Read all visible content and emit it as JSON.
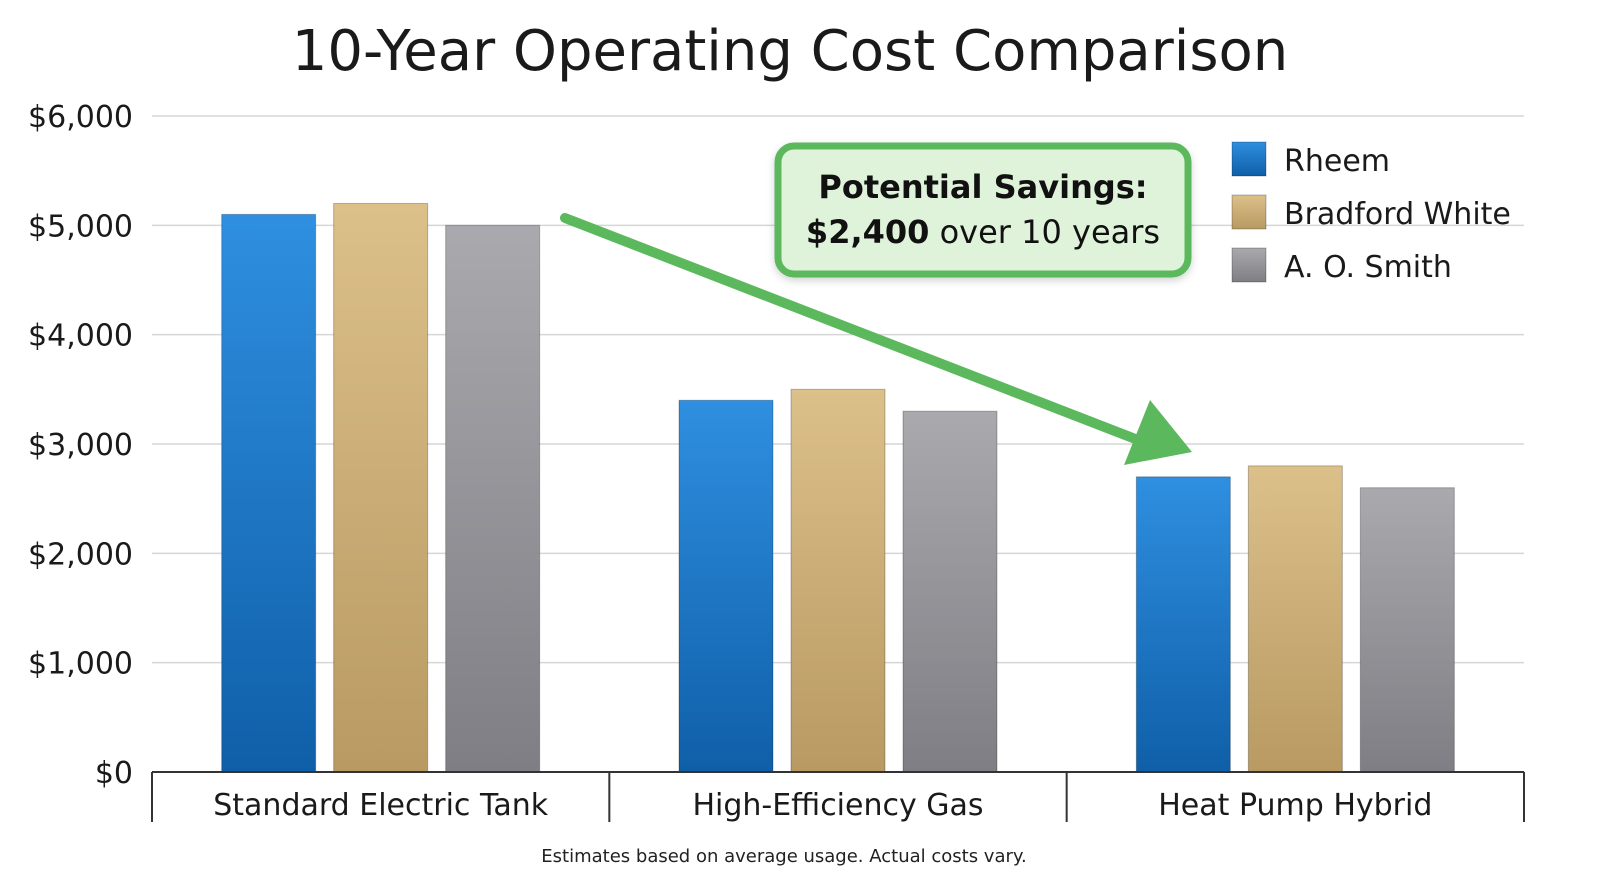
{
  "chart_data": {
    "type": "bar",
    "title": "10-Year Operating Cost Comparison",
    "xlabel": "",
    "ylabel": "",
    "ylim": [
      0,
      6000
    ],
    "y_ticks": [
      0,
      1000,
      2000,
      3000,
      4000,
      5000,
      6000
    ],
    "y_tick_labels": [
      "$0",
      "$1,000",
      "$2,000",
      "$3,000",
      "$4,000",
      "$5,000",
      "$6,000"
    ],
    "grid": true,
    "legend_position": "top-right",
    "categories": [
      "Standard Electric Tank",
      "High-Efficiency Gas",
      "Heat Pump Hybrid"
    ],
    "series": [
      {
        "name": "Rheem",
        "values": [
          5100,
          3400,
          2700
        ],
        "color": "#1f78c8"
      },
      {
        "name": "Bradford White",
        "values": [
          5200,
          3500,
          2800
        ],
        "color": "#d2b37a"
      },
      {
        "name": "A. O. Smith",
        "values": [
          5000,
          3300,
          2600
        ],
        "color": "#9a9a9e"
      }
    ],
    "annotation": {
      "line1": "Potential Savings:",
      "amount": "$2,400",
      "rest": " over 10 years",
      "border_color": "#5cb85c",
      "fill_color": "#dff3da",
      "arrow_color": "#5cb85c"
    },
    "footnote": "Estimates based on average usage. Actual costs vary."
  }
}
